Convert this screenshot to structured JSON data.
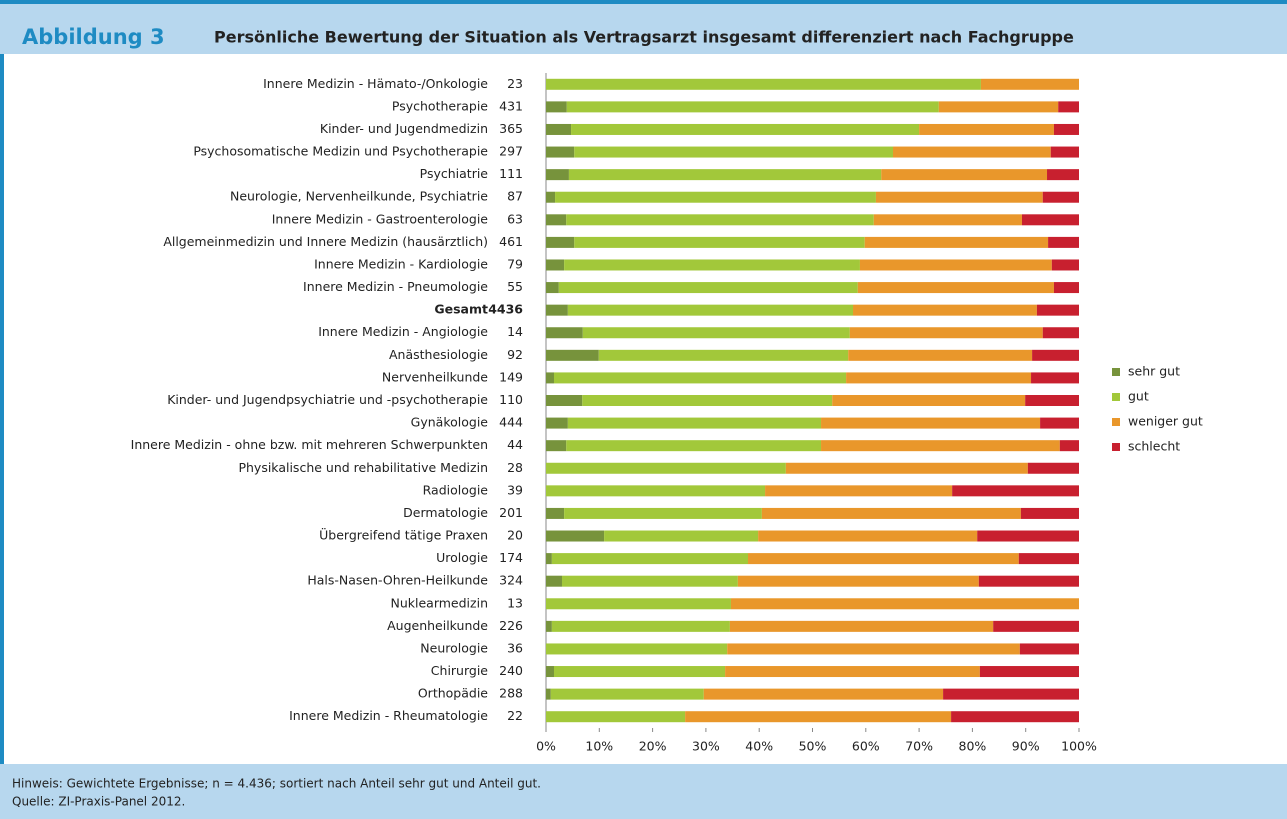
{
  "header": {
    "label": "Abbildung 3",
    "title": "Persönliche Bewertung der Situation als Vertragsarzt insgesamt differenziert nach Fachgruppe"
  },
  "chart_data": {
    "type": "stacked_barh",
    "categories": [
      "Innere Medizin - Hämato-/Onkologie",
      "Psychotherapie",
      "Kinder- und Jugendmedizin",
      "Psychosomatische Medizin und Psychotherapie",
      "Psychiatrie",
      "Neurologie, Nervenheilkunde, Psychiatrie",
      "Innere Medizin - Gastroenterologie",
      "Allgemeinmedizin und Innere Medizin (hausärztlich)",
      "Innere Medizin - Kardiologie",
      "Innere Medizin - Pneumologie",
      "Gesamt",
      "Innere Medizin - Angiologie",
      "Anästhesiologie",
      "Nervenheilkunde",
      "Kinder- und Jugendpsychiatrie und -psychotherapie",
      "Gynäkologie",
      "Innere Medizin - ohne bzw. mit mehreren Schwerpunkten",
      "Physikalische und rehabilitative Medizin",
      "Radiologie",
      "Dermatologie",
      "Übergreifend tätige Praxen",
      "Urologie",
      "Hals-Nasen-Ohren-Heilkunde",
      "Nuklearmedizin",
      "Augenheilkunde",
      "Neurologie",
      "Chirurgie",
      "Orthopädie",
      "Innere Medizin - Rheumatologie"
    ],
    "n": [
      23,
      431,
      365,
      297,
      111,
      87,
      63,
      461,
      79,
      55,
      4436,
      14,
      92,
      149,
      110,
      444,
      44,
      28,
      39,
      201,
      20,
      174,
      324,
      13,
      226,
      36,
      240,
      288,
      22
    ],
    "series": [
      {
        "name": "sehr gut",
        "color": "#77933c",
        "values": [
          0,
          3.9,
          4.7,
          5.3,
          4.3,
          1.7,
          3.8,
          5.3,
          3.4,
          2.4,
          4.1,
          6.9,
          9.9,
          1.5,
          6.8,
          4.1,
          3.8,
          0,
          0,
          3.4,
          10.9,
          1.1,
          3.0,
          0,
          1.1,
          0,
          1.5,
          0.9,
          0
        ]
      },
      {
        "name": "gut",
        "color": "#a2c83a",
        "values": [
          81.6,
          69.8,
          65.3,
          59.8,
          58.6,
          60.2,
          57.7,
          54.5,
          55.5,
          56.1,
          53.5,
          50.1,
          46.8,
          54.8,
          46.9,
          47.5,
          47.8,
          45.0,
          41.1,
          37.1,
          28.9,
          36.8,
          33.0,
          34.7,
          33.4,
          34.0,
          32.1,
          28.7,
          26.1
        ]
      },
      {
        "name": "weniger gut",
        "color": "#e9972b",
        "values": [
          18.4,
          22.4,
          25.3,
          29.6,
          31.1,
          31.3,
          27.8,
          34.4,
          36.0,
          36.8,
          34.5,
          36.2,
          34.5,
          34.7,
          36.2,
          41.1,
          44.8,
          45.4,
          35.1,
          48.6,
          41.1,
          50.8,
          45.2,
          65.3,
          49.4,
          54.9,
          47.8,
          44.9,
          49.9
        ]
      },
      {
        "name": "schlecht",
        "color": "#c8202f",
        "values": [
          0,
          3.9,
          4.7,
          5.3,
          6.0,
          6.8,
          10.7,
          5.8,
          5.1,
          4.7,
          7.9,
          6.8,
          8.8,
          9.0,
          10.1,
          7.3,
          3.6,
          9.6,
          23.8,
          10.9,
          19.1,
          11.3,
          18.8,
          0,
          16.1,
          11.1,
          18.6,
          25.5,
          24.0
        ]
      }
    ],
    "xlim": [
      0,
      100
    ],
    "xticks": [
      {
        "value": 0,
        "label": "0%"
      },
      {
        "value": 10,
        "label": "10%"
      },
      {
        "value": 20,
        "label": "20%"
      },
      {
        "value": 30,
        "label": "30%"
      },
      {
        "value": 40,
        "label": "40%"
      },
      {
        "value": 50,
        "label": "50%"
      },
      {
        "value": 60,
        "label": "60%"
      },
      {
        "value": 70,
        "label": "70%"
      },
      {
        "value": 80,
        "label": "80%"
      },
      {
        "value": 90,
        "label": "90%"
      },
      {
        "value": 100,
        "label": "100%"
      }
    ],
    "legend": "right"
  },
  "footer": {
    "note": "Hinweis: Gewichtete Ergebnisse; n = 4.436; sortiert nach Anteil sehr gut und Anteil gut.",
    "source": "Quelle: ZI-Praxis-Panel 2012."
  }
}
